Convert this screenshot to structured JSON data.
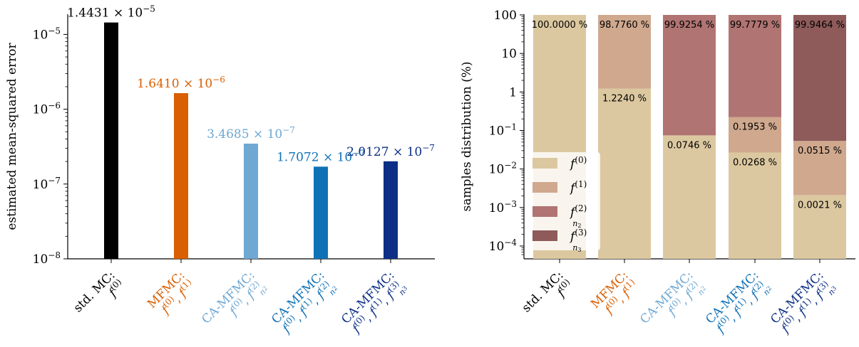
{
  "chart_data": [
    {
      "type": "bar",
      "ylabel": "estimated mean-squared error",
      "yscale": "log",
      "ylim": [
        1e-08,
        2e-05
      ],
      "ytick_values": [
        1e-08,
        1e-07,
        1e-06,
        1e-05
      ],
      "ytick_labels": [
        {
          "base": "10",
          "exp": "−8"
        },
        {
          "base": "10",
          "exp": "−7"
        },
        {
          "base": "10",
          "exp": "−6"
        },
        {
          "base": "10",
          "exp": "−5"
        }
      ],
      "categories": [
        {
          "line1": "std. MC:",
          "line2": "f(0)",
          "color": "#000000"
        },
        {
          "line1": "MFMC:",
          "line2": "f(0), f(1)",
          "color": "#d95f02"
        },
        {
          "line1": "CA-MFMC:",
          "line2": "f(0), f(2)n2",
          "color": "#6fa8d2"
        },
        {
          "line1": "CA-MFMC:",
          "line2": "f(0), f(1), f(2)n2",
          "color": "#1072b6"
        },
        {
          "line1": "CA-MFMC:",
          "line2": "f(0), f(1), f(3)n3",
          "color": "#0d2f86"
        }
      ],
      "values": [
        1.4431e-05,
        1.641e-06,
        3.4685e-07,
        1.7072e-07,
        2.0127e-07
      ],
      "value_labels": [
        {
          "mant": "1.4431 × 10",
          "exp": "−5"
        },
        {
          "mant": "1.6410 × 10",
          "exp": "−6"
        },
        {
          "mant": "3.4685 × 10",
          "exp": "−7"
        },
        {
          "mant": "1.7072 × 10",
          "exp": "−7"
        },
        {
          "mant": "2.0127 × 10",
          "exp": "−7"
        }
      ]
    },
    {
      "type": "bar",
      "stacked": true,
      "ylabel": "samples distribution (%)",
      "yscale": "log",
      "ylim": [
        5e-05,
        100
      ],
      "ytick_values": [
        0.0001,
        0.001,
        0.01,
        0.1,
        1,
        10,
        100
      ],
      "ytick_labels": [
        {
          "base": "10",
          "exp": "−4"
        },
        {
          "base": "10",
          "exp": "−3"
        },
        {
          "base": "10",
          "exp": "−2"
        },
        {
          "base": "10",
          "exp": "−1"
        },
        {
          "base": "1",
          "exp": ""
        },
        {
          "base": "10",
          "exp": ""
        },
        {
          "base": "100",
          "exp": ""
        }
      ],
      "legend_position": "lower-left",
      "series": [
        {
          "name": "f(0)",
          "color": "#dcc8a0"
        },
        {
          "name": "f(1)",
          "color": "#cfa88e"
        },
        {
          "name": "f(2)n2",
          "color": "#b07472"
        },
        {
          "name": "f(3)n3",
          "color": "#8e5a5a"
        }
      ],
      "legend_labels": [
        {
          "base": "f",
          "sup": "(0)",
          "sub": ""
        },
        {
          "base": "f",
          "sup": "(1)",
          "sub": ""
        },
        {
          "base": "f",
          "sup": "(2)",
          "sub": "n2"
        },
        {
          "base": "f",
          "sup": "(3)",
          "sub": "n3"
        }
      ],
      "categories": [
        {
          "line1": "std. MC:",
          "line2": "f(0)",
          "color": "#000000"
        },
        {
          "line1": "MFMC:",
          "line2": "f(0), f(1)",
          "color": "#d95f02"
        },
        {
          "line1": "CA-MFMC:",
          "line2": "f(0), f(2)n2",
          "color": "#6fa8d2"
        },
        {
          "line1": "CA-MFMC:",
          "line2": "f(0), f(1), f(2)n2",
          "color": "#1072b6"
        },
        {
          "line1": "CA-MFMC:",
          "line2": "f(0), f(1), f(3)n3",
          "color": "#0d2f86"
        }
      ],
      "bars": [
        {
          "segments": [
            {
              "series": 0,
              "value": 100.0
            }
          ],
          "labels": [
            {
              "text": "100.0000 %",
              "series": 0
            }
          ]
        },
        {
          "segments": [
            {
              "series": 0,
              "value": 1.224
            },
            {
              "series": 1,
              "value": 98.776
            }
          ],
          "labels": [
            {
              "text": "98.7760 %",
              "series": 1
            },
            {
              "text": "1.2240 %",
              "series": 0
            }
          ]
        },
        {
          "segments": [
            {
              "series": 0,
              "value": 0.0746
            },
            {
              "series": 2,
              "value": 99.9254
            }
          ],
          "labels": [
            {
              "text": "99.9254 %",
              "series": 2
            },
            {
              "text": "0.0746 %",
              "series": 0
            }
          ]
        },
        {
          "segments": [
            {
              "series": 0,
              "value": 0.0268
            },
            {
              "series": 1,
              "value": 0.1953
            },
            {
              "series": 2,
              "value": 99.7779
            }
          ],
          "labels": [
            {
              "text": "99.7779 %",
              "series": 2
            },
            {
              "text": "0.1953 %",
              "series": 1
            },
            {
              "text": "0.0268 %",
              "series": 0
            }
          ]
        },
        {
          "segments": [
            {
              "series": 0,
              "value": 0.0021
            },
            {
              "series": 1,
              "value": 0.0515
            },
            {
              "series": 3,
              "value": 99.9464
            }
          ],
          "labels": [
            {
              "text": "99.9464 %",
              "series": 3
            },
            {
              "text": "0.0515 %",
              "series": 1
            },
            {
              "text": "0.0021 %",
              "series": 0
            }
          ]
        }
      ]
    }
  ]
}
